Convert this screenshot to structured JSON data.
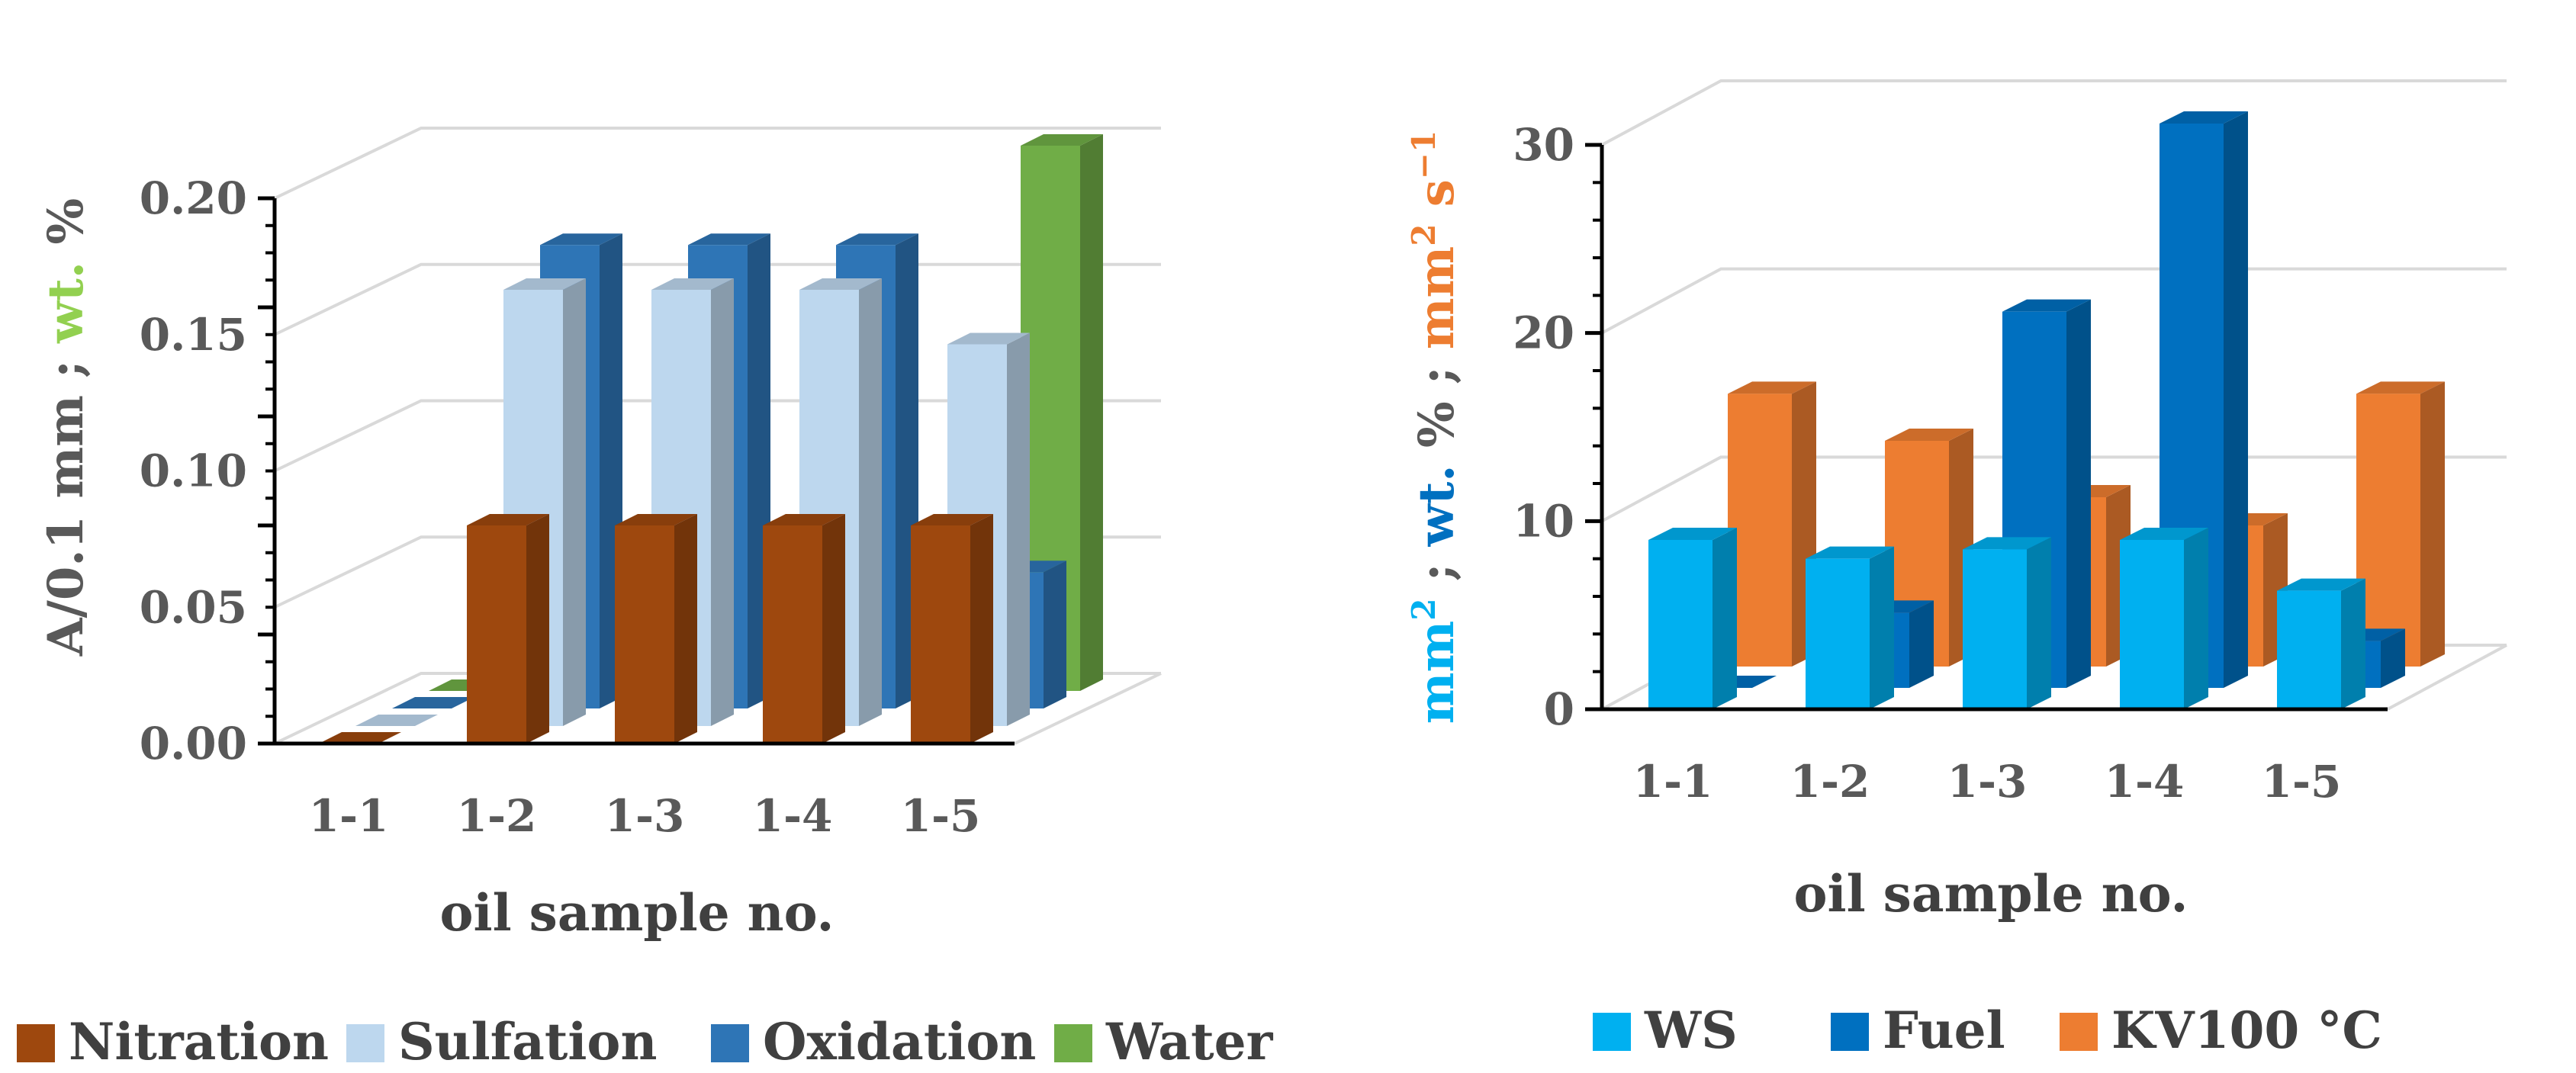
{
  "chart_data": [
    {
      "type": "bar",
      "subtype": "3d-clustered-column",
      "categories": [
        "1-1",
        "1-2",
        "1-3",
        "1-4",
        "1-5"
      ],
      "series": [
        {
          "name": "Nitration",
          "values": [
            0.0,
            0.08,
            0.08,
            0.08,
            0.08
          ],
          "color": "#9E480E"
        },
        {
          "name": "Sulfation",
          "values": [
            0.0,
            0.16,
            0.16,
            0.16,
            0.14
          ],
          "color": "#BDD7EE"
        },
        {
          "name": "Oxidation",
          "values": [
            0.0,
            0.17,
            0.17,
            0.17,
            0.05
          ],
          "color": "#2E75B6"
        },
        {
          "name": "Water",
          "values": [
            0.0,
            0.0,
            0.0,
            0.0,
            0.2
          ],
          "color": "#70AD47"
        }
      ],
      "ylim": [
        0,
        0.2
      ],
      "yticks": [
        "0.00",
        "0.05",
        "0.10",
        "0.15",
        "0.20"
      ],
      "xlabel": "oil sample no.",
      "ylabel_parts": [
        {
          "text": "A/0.1 mm ; ",
          "color": "#595959"
        },
        {
          "text": "wt.",
          "color": "#92D050"
        },
        {
          "text": " %",
          "color": "#595959"
        }
      ],
      "legend": [
        "Nitration",
        "Sulfation",
        "Oxidation",
        "Water"
      ],
      "legend_position": "bottom"
    },
    {
      "type": "bar",
      "subtype": "3d-clustered-column",
      "categories": [
        "1-1",
        "1-2",
        "1-3",
        "1-4",
        "1-5"
      ],
      "series": [
        {
          "name": "WS",
          "values": [
            9,
            8,
            8.5,
            9,
            6.3
          ],
          "color": "#00B0F0"
        },
        {
          "name": "Fuel",
          "values": [
            0,
            4,
            20,
            30,
            2.5
          ],
          "color": "#0070C0"
        },
        {
          "name": "KV100 °C",
          "values": [
            14.5,
            12,
            9,
            7.5,
            14.5
          ],
          "color": "#ED7D31"
        }
      ],
      "ylim": [
        0,
        30
      ],
      "yticks": [
        "0",
        "10",
        "20",
        "30"
      ],
      "xlabel": "oil sample no.",
      "ylabel_parts": [
        {
          "text": "mm",
          "color": "#00B0F0"
        },
        {
          "text": "2",
          "color": "#00B0F0",
          "sup": true
        },
        {
          "text": " ; ",
          "color": "#595959"
        },
        {
          "text": "wt.",
          "color": "#0070C0"
        },
        {
          "text": " % ; ",
          "color": "#595959"
        },
        {
          "text": "mm",
          "color": "#ED7D31"
        },
        {
          "text": "2",
          "color": "#ED7D31",
          "sup": true
        },
        {
          "text": " s",
          "color": "#ED7D31"
        },
        {
          "text": "−1",
          "color": "#ED7D31",
          "sup": true
        }
      ],
      "legend": [
        "WS",
        "Fuel",
        "KV100 °C"
      ],
      "legend_position": "bottom"
    }
  ]
}
